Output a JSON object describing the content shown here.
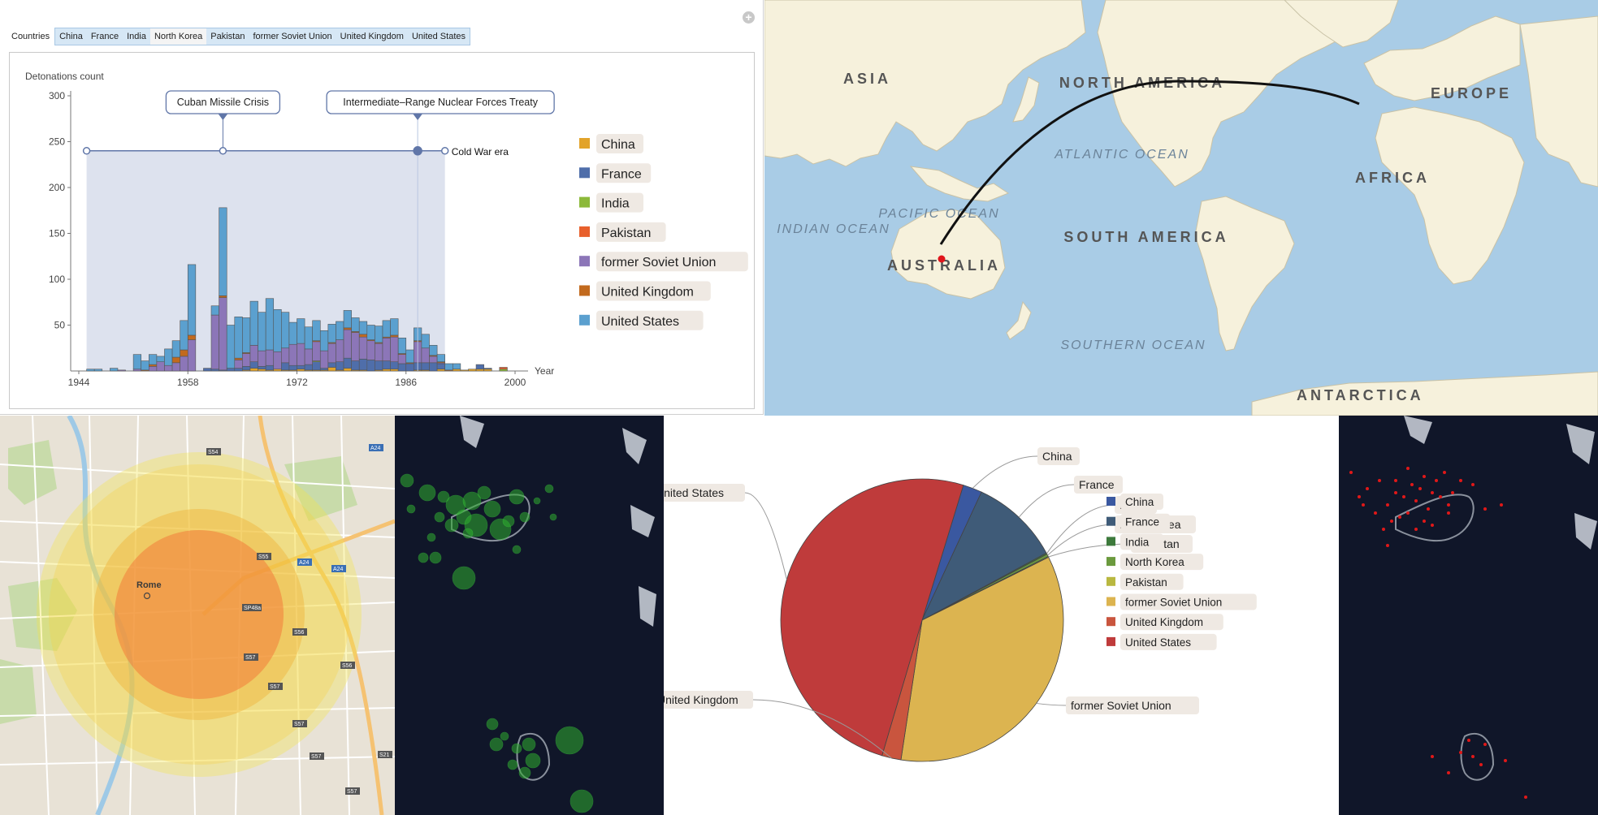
{
  "histogram": {
    "tab_bar": {
      "label": "Countries",
      "tabs": [
        "China",
        "France",
        "India",
        "North Korea",
        "Pakistan",
        "former Soviet Union",
        "United Kingdom",
        "United States"
      ],
      "selected": "North Korea"
    },
    "callouts": [
      "Cuban Missile Crisis",
      "Intermediate–Range Nuclear Forces Treaty"
    ],
    "era_label": "Cold War era",
    "legend": [
      "China",
      "France",
      "India",
      "Pakistan",
      "former Soviet Union",
      "United Kingdom",
      "United States"
    ]
  },
  "world_map": {
    "labels": [
      "ASIA",
      "NORTH AMERICA",
      "EUROPE",
      "ATLANTIC OCEAN",
      "AFRICA",
      "INDIAN OCEAN",
      "PACIFIC OCEAN",
      "AUSTRALIA",
      "SOUTH AMERICA",
      "SOUTHERN OCEAN",
      "ANTARCTICA"
    ]
  },
  "rome_map": {
    "city_label": "Rome",
    "road_labels": [
      "S54",
      "S55",
      "A24",
      "A24",
      "A24",
      "SP48a",
      "S56",
      "S57",
      "S57",
      "S56",
      "S57",
      "S57",
      "S57",
      "S21"
    ]
  },
  "chart_data": [
    {
      "type": "bar",
      "stacked": true,
      "ylabel": "Detonations count",
      "xlabel": "Year",
      "x": [
        1945,
        1946,
        1947,
        1948,
        1949,
        1950,
        1951,
        1952,
        1953,
        1954,
        1955,
        1956,
        1957,
        1958,
        1959,
        1960,
        1961,
        1962,
        1963,
        1964,
        1965,
        1966,
        1967,
        1968,
        1969,
        1970,
        1971,
        1972,
        1973,
        1974,
        1975,
        1976,
        1977,
        1978,
        1979,
        1980,
        1981,
        1982,
        1983,
        1984,
        1985,
        1986,
        1987,
        1988,
        1989,
        1990,
        1991,
        1992,
        1993,
        1994,
        1995,
        1996,
        1997,
        1998
      ],
      "xticks": [
        1944,
        1958,
        1972,
        1986,
        2000
      ],
      "yticks": [
        50,
        100,
        150,
        200,
        250,
        300
      ],
      "ylim": [
        0,
        300
      ],
      "xlim": [
        1944,
        2000
      ],
      "series": [
        {
          "name": "China",
          "color": "#e2a32a",
          "values": [
            0,
            0,
            0,
            0,
            0,
            0,
            0,
            0,
            0,
            0,
            0,
            0,
            0,
            0,
            0,
            0,
            0,
            0,
            0,
            0,
            1,
            3,
            2,
            1,
            2,
            1,
            1,
            2,
            1,
            1,
            1,
            4,
            1,
            3,
            1,
            1,
            0,
            1,
            2,
            2,
            0,
            0,
            1,
            1,
            0,
            2,
            0,
            2,
            1,
            2,
            2,
            2,
            0,
            0
          ]
        },
        {
          "name": "France",
          "color": "#4f6eaa",
          "values": [
            0,
            0,
            0,
            0,
            0,
            0,
            0,
            0,
            0,
            0,
            0,
            0,
            0,
            0,
            0,
            3,
            2,
            1,
            3,
            3,
            4,
            7,
            3,
            5,
            0,
            8,
            5,
            4,
            6,
            9,
            2,
            5,
            9,
            11,
            10,
            12,
            12,
            10,
            9,
            8,
            8,
            8,
            8,
            8,
            9,
            6,
            0,
            0,
            0,
            0,
            5,
            1,
            0,
            0
          ]
        },
        {
          "name": "India",
          "color": "#8cb93a",
          "values": [
            0,
            0,
            0,
            0,
            0,
            0,
            0,
            0,
            0,
            0,
            0,
            0,
            0,
            0,
            0,
            0,
            0,
            0,
            0,
            0,
            0,
            0,
            0,
            0,
            0,
            0,
            0,
            0,
            0,
            1,
            0,
            0,
            0,
            0,
            0,
            0,
            0,
            0,
            0,
            0,
            0,
            0,
            0,
            0,
            0,
            0,
            0,
            0,
            0,
            0,
            0,
            0,
            0,
            2
          ]
        },
        {
          "name": "Pakistan",
          "color": "#e8602c",
          "values": [
            0,
            0,
            0,
            0,
            0,
            0,
            0,
            0,
            0,
            0,
            0,
            0,
            0,
            0,
            0,
            0,
            0,
            0,
            0,
            0,
            0,
            0,
            0,
            0,
            0,
            0,
            0,
            0,
            0,
            0,
            0,
            0,
            0,
            0,
            0,
            0,
            0,
            0,
            0,
            0,
            0,
            0,
            0,
            0,
            0,
            0,
            0,
            0,
            0,
            0,
            0,
            0,
            0,
            2
          ]
        },
        {
          "name": "former Soviet Union",
          "color": "#8c76b8",
          "values": [
            0,
            0,
            0,
            0,
            1,
            0,
            2,
            0,
            5,
            10,
            6,
            9,
            16,
            34,
            0,
            0,
            59,
            79,
            0,
            9,
            14,
            18,
            17,
            17,
            19,
            16,
            23,
            24,
            17,
            21,
            19,
            21,
            24,
            31,
            31,
            24,
            21,
            19,
            25,
            27,
            10,
            0,
            23,
            16,
            7,
            1,
            0,
            0,
            0,
            0,
            0,
            0,
            0,
            0
          ]
        },
        {
          "name": "United Kingdom",
          "color": "#c26a1e",
          "values": [
            0,
            0,
            0,
            0,
            0,
            0,
            0,
            1,
            2,
            0,
            0,
            6,
            7,
            5,
            0,
            0,
            0,
            2,
            0,
            2,
            1,
            0,
            0,
            0,
            0,
            0,
            0,
            0,
            0,
            1,
            0,
            1,
            0,
            2,
            1,
            3,
            1,
            1,
            1,
            2,
            1,
            1,
            1,
            0,
            1,
            1,
            1,
            0,
            0,
            0,
            0,
            0,
            0,
            0
          ]
        },
        {
          "name": "United States",
          "color": "#5ba0cf",
          "values": [
            2,
            2,
            0,
            3,
            0,
            0,
            16,
            10,
            11,
            6,
            18,
            18,
            32,
            77,
            0,
            0,
            10,
            96,
            47,
            45,
            38,
            48,
            42,
            56,
            46,
            39,
            24,
            27,
            24,
            22,
            22,
            20,
            20,
            19,
            15,
            14,
            16,
            18,
            18,
            18,
            17,
            14,
            14,
            15,
            11,
            8,
            7,
            6,
            0,
            0,
            0,
            0,
            0,
            0
          ]
        }
      ],
      "annotations": [
        {
          "label": "Cuban Missile Crisis",
          "x": 1962
        },
        {
          "label": "Intermediate–Range Nuclear Forces Treaty",
          "x": 1987
        },
        {
          "label": "Cold War era",
          "x_range": [
            1945,
            1991
          ]
        }
      ],
      "legend_position": "right"
    },
    {
      "type": "pie",
      "labels": [
        "China",
        "France",
        "India",
        "North Korea",
        "Pakistan",
        "former Soviet Union",
        "United Kingdom",
        "United States"
      ],
      "values": [
        45,
        210,
        3,
        6,
        2,
        715,
        45,
        1032
      ],
      "colors": [
        "#3a58a0",
        "#3f5b78",
        "#3d7a3c",
        "#6b9a3e",
        "#b9b840",
        "#dcb450",
        "#c9553e",
        "#bf3b3b"
      ],
      "legend_position": "right"
    }
  ]
}
